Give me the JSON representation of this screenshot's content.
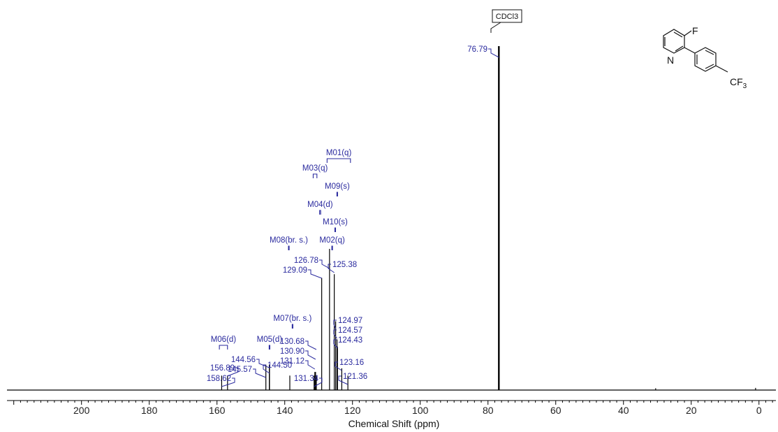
{
  "chart_data": {
    "type": "line",
    "xlabel": "Chemical Shift (ppm)",
    "xlim": [
      222,
      -5
    ],
    "x_reversed": true,
    "x_ticks": [
      200,
      180,
      160,
      140,
      120,
      100,
      80,
      60,
      40,
      20,
      0
    ],
    "peaks": [
      {
        "ppm": 76.79,
        "height": 0.95
      },
      {
        "ppm": 158.62,
        "height": 0.04
      },
      {
        "ppm": 156.89,
        "height": 0.04
      },
      {
        "ppm": 145.57,
        "height": 0.07
      },
      {
        "ppm": 144.56,
        "height": 0.07
      },
      {
        "ppm": 144.5,
        "height": 0.07
      },
      {
        "ppm": 138.5,
        "height": 0.04
      },
      {
        "ppm": 131.34,
        "height": 0.04
      },
      {
        "ppm": 131.12,
        "height": 0.05
      },
      {
        "ppm": 130.9,
        "height": 0.05
      },
      {
        "ppm": 130.68,
        "height": 0.04
      },
      {
        "ppm": 129.09,
        "height": 0.31
      },
      {
        "ppm": 126.78,
        "height": 0.39
      },
      {
        "ppm": 125.38,
        "height": 0.32
      },
      {
        "ppm": 124.97,
        "height": 0.19
      },
      {
        "ppm": 124.57,
        "height": 0.14
      },
      {
        "ppm": 124.43,
        "height": 0.12
      },
      {
        "ppm": 123.16,
        "height": 0.06
      },
      {
        "ppm": 121.36,
        "height": 0.04
      },
      {
        "ppm": 30.5,
        "height": 0.005
      },
      {
        "ppm": 1.0,
        "height": 0.006
      }
    ],
    "peak_labels": [
      {
        "text": "76.79",
        "ppm": 76.79
      },
      {
        "text": "126.78",
        "ppm": 126.78
      },
      {
        "text": "129.09",
        "ppm": 129.09
      },
      {
        "text": "125.38",
        "ppm": 125.38
      },
      {
        "text": "130.68",
        "ppm": 130.68
      },
      {
        "text": "130.90",
        "ppm": 130.9
      },
      {
        "text": "131.12",
        "ppm": 131.12
      },
      {
        "text": "131.34",
        "ppm": 131.34
      },
      {
        "text": "144.56",
        "ppm": 144.56
      },
      {
        "text": "145.57",
        "ppm": 145.57
      },
      {
        "text": "144.50",
        "ppm": 144.5
      },
      {
        "text": "156.89",
        "ppm": 156.89
      },
      {
        "text": "158.62",
        "ppm": 158.62
      },
      {
        "text": "124.97",
        "ppm": 124.97
      },
      {
        "text": "124.57",
        "ppm": 124.57
      },
      {
        "text": "124.43",
        "ppm": 124.43
      },
      {
        "text": "123.16",
        "ppm": 123.16
      },
      {
        "text": "121.36",
        "ppm": 121.36
      }
    ],
    "multiplets": [
      {
        "text": "M01(q)",
        "ppm_from": 127.5,
        "ppm_to": 120.6
      },
      {
        "text": "M03(q)",
        "ppm_from": 131.6,
        "ppm_to": 130.5
      },
      {
        "text": "M09(s)",
        "ppm_from": 124.6,
        "ppm_to": 124.4
      },
      {
        "text": "M04(d)",
        "ppm_from": 129.7,
        "ppm_to": 129.4
      },
      {
        "text": "M10(s)",
        "ppm_from": 125.2,
        "ppm_to": 125.0
      },
      {
        "text": "M02(q)",
        "ppm_from": 126.1,
        "ppm_to": 125.9
      },
      {
        "text": "M08(br. s.)",
        "ppm_from": 138.9,
        "ppm_to": 138.7
      },
      {
        "text": "M07(br. s.)",
        "ppm_from": 137.8,
        "ppm_to": 137.6
      },
      {
        "text": "M06(d)",
        "ppm_from": 159.3,
        "ppm_to": 156.9
      },
      {
        "text": "M05(d)",
        "ppm_from": 144.6,
        "ppm_to": 144.4
      }
    ],
    "solvent_label": "CDCl3",
    "structure_labels": {
      "fluorine": "F",
      "nitrogen": "N",
      "cf3_main": "CF",
      "cf3_sub": "3"
    }
  }
}
